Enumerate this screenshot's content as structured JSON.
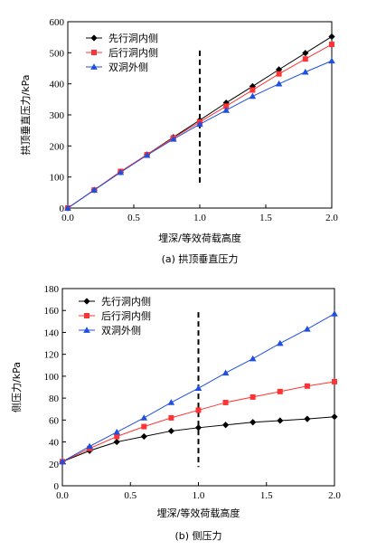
{
  "chart_data": [
    {
      "type": "line",
      "caption": "(a)  拱顶垂直压力",
      "xlabel": "埋深/等效荷载高度",
      "ylabel": "拱顶垂直压力/kPa",
      "xlim": [
        0.0,
        2.0
      ],
      "ylim": [
        0,
        600
      ],
      "xticks": [
        "0.0",
        "0.5",
        "1.0",
        "1.5",
        "2.0"
      ],
      "yticks": [
        "0",
        "100",
        "200",
        "300",
        "400",
        "500",
        "600"
      ],
      "legend_position": "top-left",
      "grid": false,
      "reference_line_x": 1.0,
      "x": [
        0.0,
        0.2,
        0.4,
        0.6,
        0.8,
        1.0,
        1.2,
        1.4,
        1.6,
        1.8,
        2.0
      ],
      "series": [
        {
          "name": "先行洞内侧",
          "color": "#000000",
          "marker": "diamond",
          "values": [
            0,
            58,
            116,
            172,
            228,
            283,
            339,
            392,
            446,
            499,
            552
          ]
        },
        {
          "name": "后行洞内侧",
          "color": "#ff3333",
          "marker": "square",
          "values": [
            0,
            58,
            118,
            172,
            226,
            277,
            328,
            380,
            432,
            480,
            527
          ]
        },
        {
          "name": "双洞外侧",
          "color": "#1f4fe0",
          "marker": "triangle",
          "values": [
            0,
            58,
            115,
            170,
            222,
            270,
            315,
            360,
            400,
            438,
            474
          ]
        }
      ]
    },
    {
      "type": "line",
      "caption": "(b)  侧压力",
      "xlabel": "埋深/等效荷载高度",
      "ylabel": "侧压力/kPa",
      "xlim": [
        0.0,
        2.0
      ],
      "ylim": [
        0,
        180
      ],
      "xticks": [
        "0.0",
        "0.5",
        "1.0",
        "1.5",
        "2.0"
      ],
      "yticks": [
        "0",
        "20",
        "40",
        "60",
        "80",
        "100",
        "120",
        "140",
        "160",
        "180"
      ],
      "legend_position": "top-left",
      "grid": false,
      "reference_line_x": 1.0,
      "x": [
        0.0,
        0.2,
        0.4,
        0.6,
        0.8,
        1.0,
        1.2,
        1.4,
        1.6,
        1.8,
        2.0
      ],
      "series": [
        {
          "name": "先行洞内侧",
          "color": "#000000",
          "marker": "diamond",
          "values": [
            22,
            32,
            40,
            45,
            50,
            53,
            55.5,
            58,
            59.5,
            61,
            63
          ]
        },
        {
          "name": "后行洞内侧",
          "color": "#ff3333",
          "marker": "square",
          "values": [
            22,
            34,
            45,
            54,
            62,
            69,
            76,
            81,
            86,
            91,
            95
          ]
        },
        {
          "name": "双洞外侧",
          "color": "#1f4fe0",
          "marker": "triangle",
          "values": [
            22,
            36,
            49,
            62,
            76,
            89,
            103,
            116,
            130,
            143,
            157
          ]
        }
      ]
    }
  ]
}
